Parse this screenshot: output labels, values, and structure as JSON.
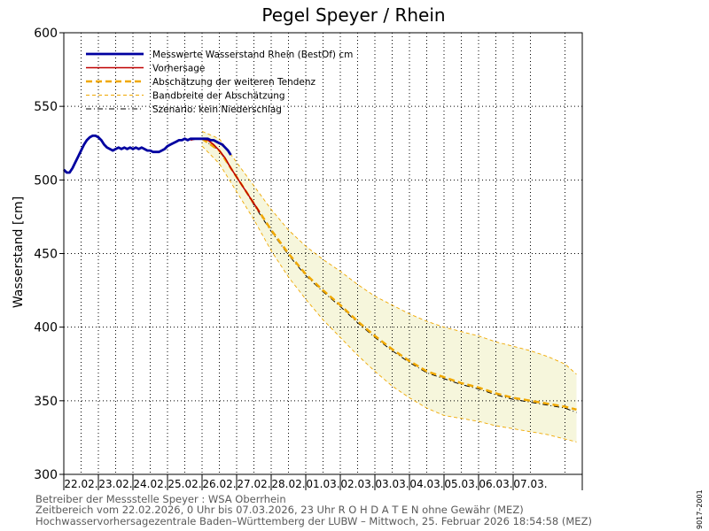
{
  "chart_data": {
    "type": "line",
    "title": "Pegel Speyer / Rhein",
    "ylabel": "Wasserstand [cm]",
    "ylim": [
      300,
      600
    ],
    "yticks": [
      300,
      350,
      400,
      450,
      500,
      550,
      600
    ],
    "x_range_hours": [
      0,
      360
    ],
    "categories": [
      "22.02.",
      "23.02.",
      "24.02.",
      "25.02.",
      "26.02.",
      "27.02.",
      "28.02.",
      "01.03.",
      "02.03.",
      "03.03.",
      "04.03.",
      "05.03.",
      "06.03.",
      "07.03."
    ],
    "grid": true,
    "legend": "top-left",
    "series": [
      {
        "name": "Messwerte Wasserstand Rhein (BestOf)  cm",
        "color": "#0000a0",
        "style": "solid-thick",
        "x": [
          0,
          2,
          4,
          6,
          8,
          10,
          12,
          14,
          16,
          18,
          20,
          22,
          24,
          26,
          28,
          30,
          32,
          34,
          36,
          38,
          40,
          42,
          44,
          46,
          48,
          50,
          52,
          54,
          56,
          58,
          60,
          62,
          64,
          66,
          68,
          70,
          72,
          74,
          76,
          78,
          80,
          82,
          84,
          86,
          88,
          90,
          92,
          94,
          96,
          98,
          100,
          102,
          104,
          106,
          108,
          110,
          112,
          114,
          116
        ],
        "y": [
          507,
          505,
          505,
          508,
          512,
          516,
          520,
          524,
          527,
          529,
          530,
          530,
          529,
          527,
          524,
          522,
          521,
          520,
          521,
          522,
          521,
          522,
          521,
          522,
          521,
          522,
          521,
          522,
          521,
          520,
          520,
          519,
          519,
          519,
          520,
          521,
          523,
          524,
          525,
          526,
          527,
          527,
          528,
          527,
          528,
          528,
          528,
          528,
          528,
          528,
          528,
          527,
          527,
          526,
          525,
          524,
          522,
          520,
          517
        ]
      },
      {
        "name": "Vorhersage",
        "color": "#c00000",
        "style": "solid",
        "x": [
          88,
          92,
          96,
          100,
          104,
          108,
          112,
          116,
          120,
          124,
          128,
          132,
          136
        ],
        "y": [
          527,
          528,
          528,
          527,
          524,
          520,
          515,
          508,
          502,
          496,
          490,
          484,
          478
        ]
      },
      {
        "name": "Abschätzung der weiteren Tendenz",
        "color": "#f0a800",
        "style": "dashed-thick",
        "x": [
          96,
          108,
          120,
          132,
          144,
          156,
          168,
          180,
          192,
          204,
          216,
          228,
          240,
          252,
          264,
          276,
          288,
          300,
          312,
          324,
          336,
          348,
          356
        ],
        "y": [
          528,
          520,
          502,
          484,
          466,
          450,
          436,
          425,
          415,
          404,
          394,
          385,
          377,
          370,
          366,
          362,
          359,
          355,
          352,
          350,
          348,
          346,
          344
        ]
      },
      {
        "name": "Bandbreite der Abschätzung",
        "color": "#f0a800",
        "style": "dashed-thin",
        "x": [
          96,
          108,
          120,
          132,
          144,
          156,
          168,
          180,
          192,
          204,
          216,
          228,
          240,
          252,
          264,
          276,
          288,
          300,
          312,
          324,
          336,
          348,
          356
        ],
        "y_upper": [
          533,
          528,
          512,
          496,
          480,
          466,
          455,
          446,
          438,
          429,
          421,
          415,
          409,
          404,
          400,
          397,
          394,
          390,
          387,
          384,
          380,
          375,
          368
        ],
        "y_lower": [
          523,
          511,
          492,
          473,
          452,
          434,
          419,
          405,
          393,
          381,
          370,
          360,
          352,
          345,
          340,
          338,
          336,
          333,
          331,
          329,
          327,
          324,
          322
        ]
      },
      {
        "name": "Szenario: kein Niederschlag",
        "color": "#000000",
        "style": "dash-dot",
        "x": [
          96,
          108,
          120,
          132,
          144,
          156,
          168,
          180,
          192,
          204,
          216,
          228,
          240,
          252,
          264,
          276,
          288,
          300,
          312,
          324,
          336,
          348,
          356
        ],
        "y": [
          528,
          520,
          502,
          483,
          465,
          449,
          435,
          424,
          414,
          403,
          393,
          384,
          376,
          369,
          365,
          361,
          358,
          354,
          351,
          349,
          347,
          345,
          342
        ]
      }
    ]
  },
  "footer": {
    "line1": "Betreiber der Messstelle Speyer : WSA Oberrhein",
    "line2": "Zeitbereich vom 22.02.2026, 0 Uhr bis 07.03.2026, 23 Uhr    R O H D A T E N ohne Gewähr (MEZ)",
    "line3": "Hochwasservorhersagezentrale Baden–Württemberg der LUBW – Mittwoch, 25. Februar 2026 18:54:58 (MEZ)"
  },
  "side_label": "9017–2001"
}
